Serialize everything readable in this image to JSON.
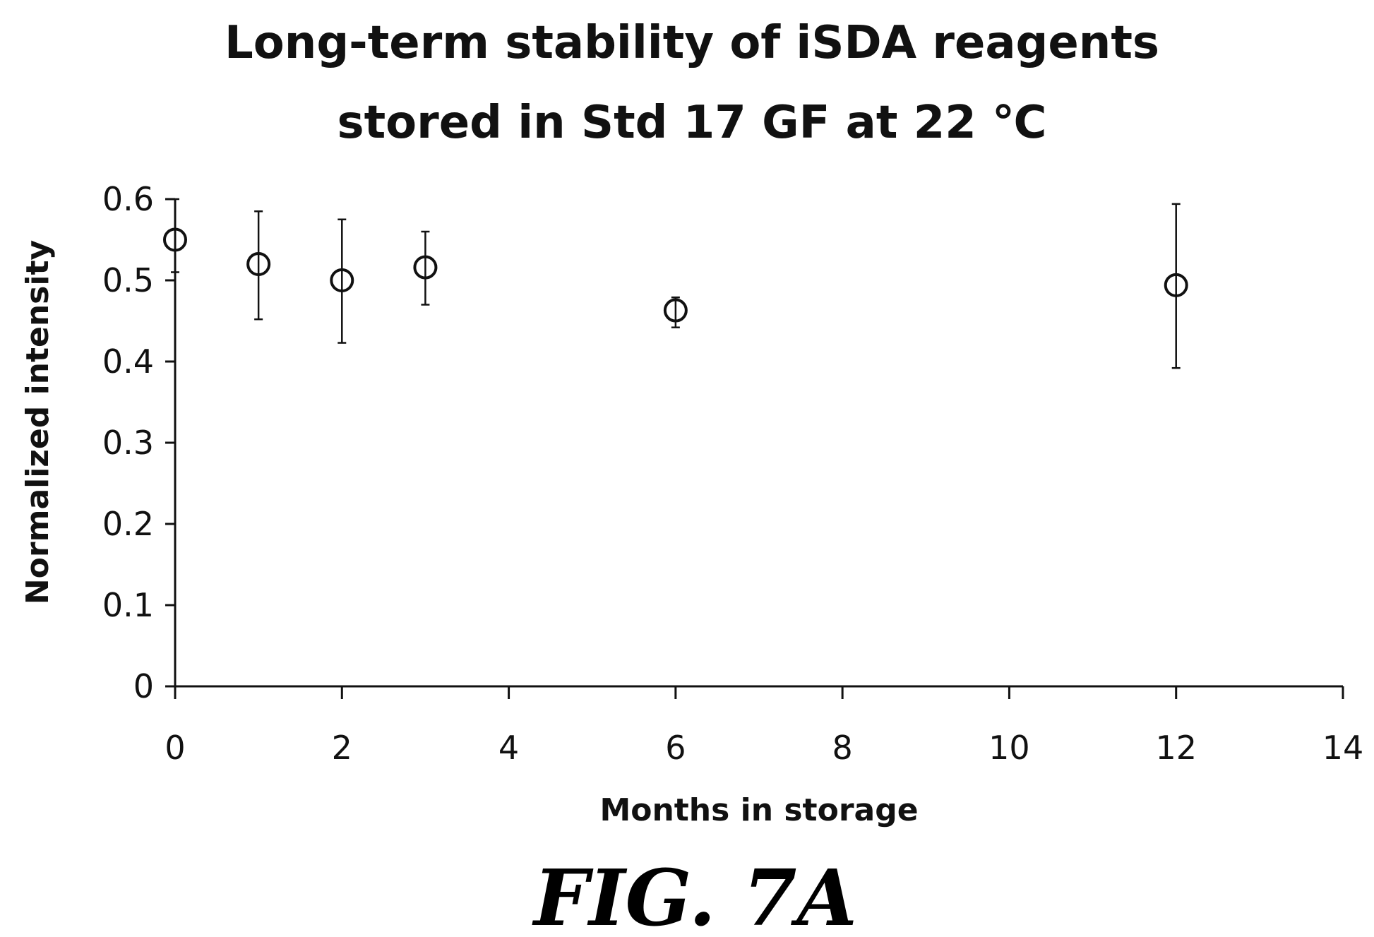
{
  "chart_data": {
    "type": "scatter",
    "title_lines": [
      "Long-term stability of iSDA reagents",
      "stored in Std 17 GF at 22 ℃"
    ],
    "xlabel": "Months in storage",
    "ylabel": "Normalized intensity",
    "xlim": [
      0,
      14
    ],
    "ylim": [
      0,
      0.6
    ],
    "xticks": [
      "0",
      "2",
      "4",
      "6",
      "8",
      "10",
      "12",
      "14"
    ],
    "yticks": [
      "0",
      "0.1",
      "0.2",
      "0.3",
      "0.4",
      "0.5",
      "0.6"
    ],
    "xtick_values": [
      0,
      2,
      4,
      6,
      8,
      10,
      12,
      14
    ],
    "ytick_values": [
      0,
      0.1,
      0.2,
      0.3,
      0.4,
      0.5,
      0.6
    ],
    "grid": false,
    "marker": "open-circle",
    "points": [
      {
        "x": 0,
        "y": 0.55,
        "err_low": 0.51,
        "err_high": 0.6
      },
      {
        "x": 1,
        "y": 0.52,
        "err_low": 0.452,
        "err_high": 0.585
      },
      {
        "x": 2,
        "y": 0.5,
        "err_low": 0.423,
        "err_high": 0.575
      },
      {
        "x": 3,
        "y": 0.516,
        "err_low": 0.47,
        "err_high": 0.56
      },
      {
        "x": 6,
        "y": 0.463,
        "err_low": 0.442,
        "err_high": 0.479
      },
      {
        "x": 12,
        "y": 0.494,
        "err_low": 0.392,
        "err_high": 0.594
      }
    ]
  },
  "caption": "FIG. 7A"
}
